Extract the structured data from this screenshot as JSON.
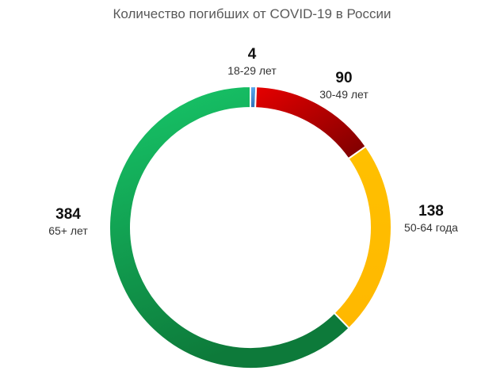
{
  "chart_data": {
    "type": "pie",
    "title": "Количество погибших от COVID-19 в России",
    "categories": [
      "18-29 лет",
      "30-49 лет",
      "50-64 года",
      "65+ лет"
    ],
    "values": [
      4,
      90,
      138,
      384
    ],
    "value_labels": [
      "4",
      "90",
      "138",
      "384"
    ],
    "colors": [
      "#4a90d9",
      "#cc0000",
      "#ffc000",
      "#17b85f"
    ],
    "legend": "none"
  }
}
